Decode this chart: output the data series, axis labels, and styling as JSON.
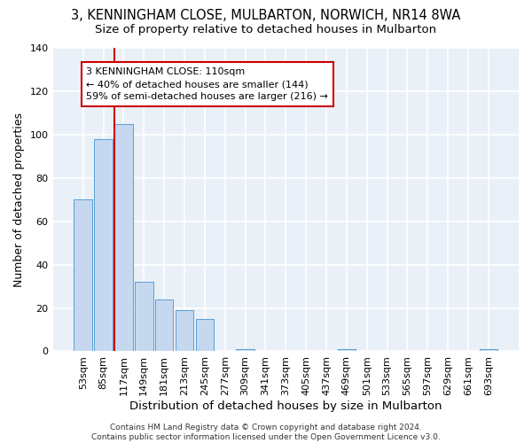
{
  "title": "3, KENNINGHAM CLOSE, MULBARTON, NORWICH, NR14 8WA",
  "subtitle": "Size of property relative to detached houses in Mulbarton",
  "xlabel_bottom": "Distribution of detached houses by size in Mulbarton",
  "ylabel": "Number of detached properties",
  "bar_labels": [
    "53sqm",
    "85sqm",
    "117sqm",
    "149sqm",
    "181sqm",
    "213sqm",
    "245sqm",
    "277sqm",
    "309sqm",
    "341sqm",
    "373sqm",
    "405sqm",
    "437sqm",
    "469sqm",
    "501sqm",
    "533sqm",
    "565sqm",
    "597sqm",
    "629sqm",
    "661sqm",
    "693sqm"
  ],
  "bar_values": [
    70,
    98,
    105,
    32,
    24,
    19,
    15,
    0,
    1,
    0,
    0,
    0,
    0,
    1,
    0,
    0,
    0,
    0,
    0,
    0,
    1
  ],
  "bar_color": "#c5d8f0",
  "bar_edge_color": "#5a9fd4",
  "vline_x_index": 2,
  "vline_color": "#cc0000",
  "annotation_text": "3 KENNINGHAM CLOSE: 110sqm\n← 40% of detached houses are smaller (144)\n59% of semi-detached houses are larger (216) →",
  "annotation_box_color": "#ffffff",
  "annotation_box_edge_color": "#cc0000",
  "ylim": [
    0,
    140
  ],
  "yticks": [
    0,
    20,
    40,
    60,
    80,
    100,
    120,
    140
  ],
  "background_color": "#eaf0f8",
  "grid_color": "#ffffff",
  "footnote": "Contains HM Land Registry data © Crown copyright and database right 2024.\nContains public sector information licensed under the Open Government Licence v3.0.",
  "title_fontsize": 10.5,
  "subtitle_fontsize": 9.5,
  "annotation_fontsize": 8,
  "ylabel_fontsize": 9,
  "xlabel_bottom_fontsize": 9.5,
  "tick_fontsize": 8
}
